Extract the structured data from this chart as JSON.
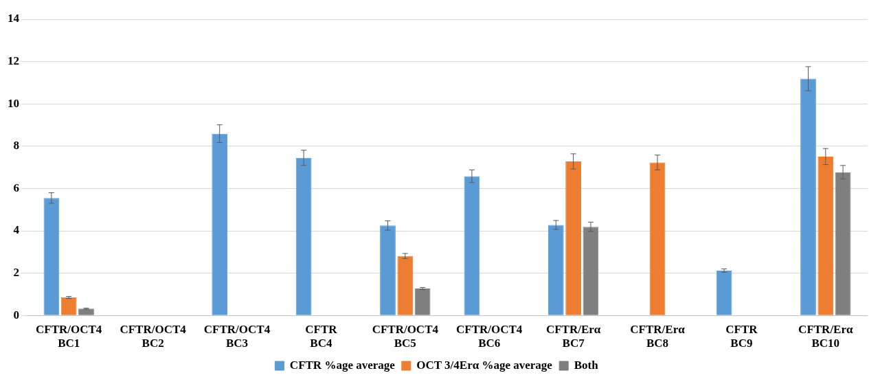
{
  "chart_data": {
    "type": "bar",
    "categories": [
      "CFTR/OCT4\nBC1",
      "CFTR/OCT4\nBC2",
      "CFTR/OCT4\nBC3",
      "CFTR\nBC4",
      "CFTR/OCT4\nBC5",
      "CFTR/OCT4\nBC6",
      "CFTR/Erα\nBC7",
      "CFTR/Erα\nBC8",
      "CFTR\nBC9",
      "CFTR/Erα\nBC10"
    ],
    "series": [
      {
        "name": "CFTR %age average",
        "color": "#5b9bd5",
        "values": [
          5.55,
          null,
          8.59,
          7.45,
          4.25,
          6.58,
          4.28,
          null,
          2.12,
          11.19
        ],
        "errors": [
          0.25,
          null,
          0.42,
          0.36,
          0.22,
          0.3,
          0.21,
          null,
          0.08,
          0.57
        ]
      },
      {
        "name": "OCT 3/4Erα %age average",
        "color": "#ed7d31",
        "values": [
          0.85,
          null,
          null,
          null,
          2.81,
          null,
          7.28,
          7.23,
          null,
          7.51
        ],
        "errors": [
          0.05,
          null,
          null,
          null,
          0.12,
          null,
          0.36,
          0.35,
          null,
          0.38
        ]
      },
      {
        "name": "Both",
        "color": "#7f7f7f",
        "values": [
          0.32,
          null,
          null,
          null,
          1.27,
          null,
          4.19,
          null,
          null,
          6.77
        ],
        "errors": [
          0.03,
          null,
          null,
          null,
          0.05,
          null,
          0.22,
          null,
          null,
          0.32
        ]
      }
    ],
    "ylim": [
      0,
      14
    ],
    "yticks": [
      0,
      2,
      4,
      6,
      8,
      10,
      12,
      14
    ],
    "grid": "y",
    "legend": "bottom"
  }
}
